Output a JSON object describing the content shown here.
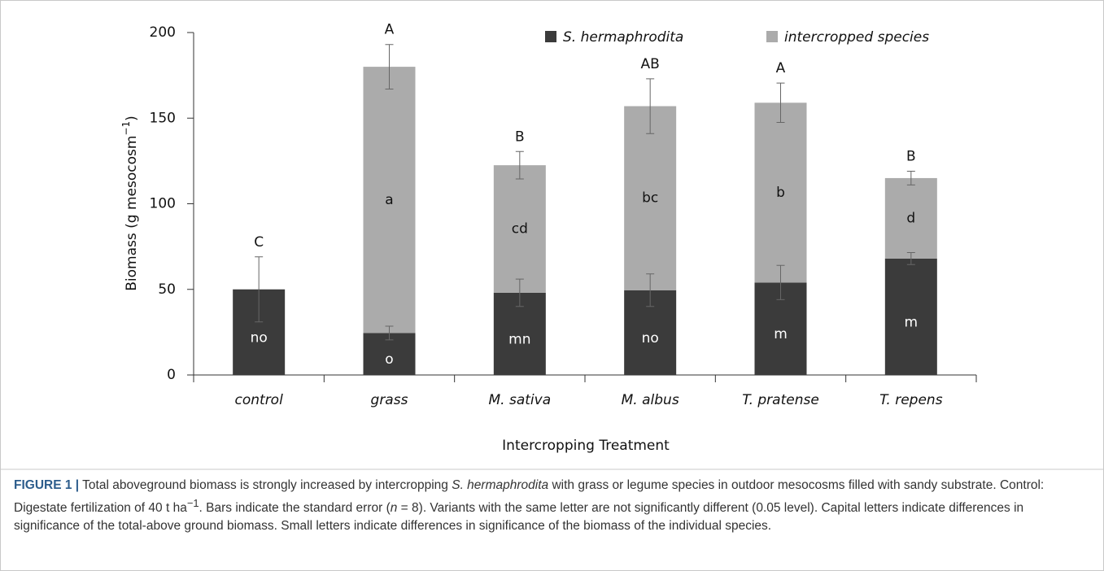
{
  "chart_data": {
    "type": "stacked_bar",
    "y_label": [
      "Biomass (g mesocosm",
      "−1",
      ")"
    ],
    "x_label": "Intercropping Treatment",
    "categories": [
      "control",
      "grass",
      "M. sativa",
      "M. albus",
      "T. pratense",
      "T. repens"
    ],
    "series": [
      {
        "name": "S. hermaphrodita",
        "color": "#3b3b3b",
        "values": [
          50,
          24.5,
          48,
          49.5,
          54,
          68
        ],
        "errors": [
          19,
          4,
          8,
          9.5,
          10,
          3.5
        ],
        "significance_letters": [
          "no",
          "o",
          "mn",
          "no",
          "m",
          "m"
        ]
      },
      {
        "name": "intercropped species",
        "color": "#ababab",
        "values": [
          null,
          155.5,
          74.5,
          107.5,
          105,
          47
        ],
        "errors": [
          null,
          13,
          8,
          16,
          11.5,
          4
        ],
        "significance_letters": [
          null,
          "a",
          "cd",
          "bc",
          "b",
          "d"
        ]
      }
    ],
    "total_significance_letters": [
      "C",
      "A",
      "B",
      "AB",
      "A",
      "B"
    ],
    "ylim": [
      0,
      200
    ],
    "yticks": [
      0,
      50,
      100,
      150,
      200
    ],
    "grid": false,
    "legend": "top"
  },
  "caption": {
    "label": "FIGURE 1 |",
    "parts": [
      " Total aboveground biomass is strongly increased by intercropping ",
      "S. hermaphrodita",
      " with grass or legume species in outdoor mesocosms filled with sandy substrate. Control: Digestate fertilization of 40 t ha",
      "−1",
      ". Bars indicate the standard error (",
      "n",
      " = 8). Variants with the same letter are not significantly different (0.05 level). Capital letters indicate differences in significance of the total-above ground biomass. Small letters indicate differences in significance of the biomass of the individual species."
    ]
  }
}
